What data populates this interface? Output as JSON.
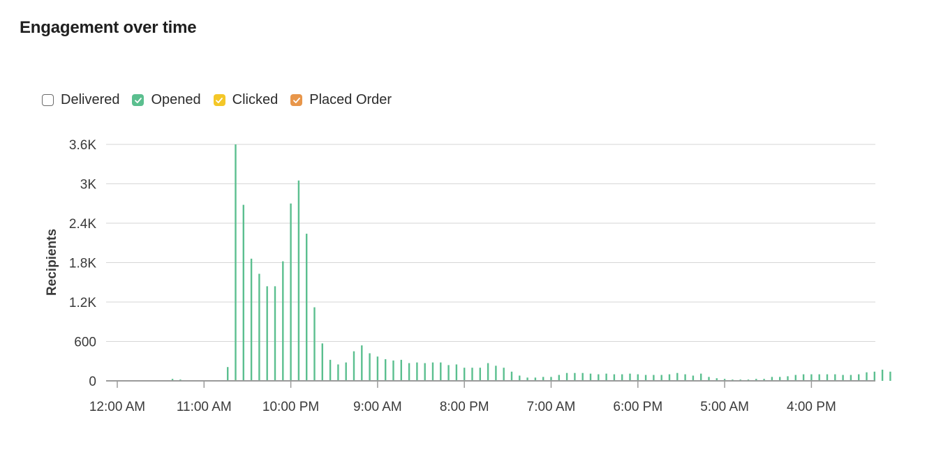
{
  "title": "Engagement over time",
  "legend": [
    {
      "label": "Delivered",
      "checked": false,
      "color": "#ffffff",
      "icon": "checkbox-unchecked-icon"
    },
    {
      "label": "Opened",
      "checked": true,
      "color": "#5bbf8f",
      "icon": "checkbox-checked-icon"
    },
    {
      "label": "Clicked",
      "checked": true,
      "color": "#f4c728",
      "icon": "checkbox-checked-icon"
    },
    {
      "label": "Placed Order",
      "checked": true,
      "color": "#e8964a",
      "icon": "checkbox-checked-icon"
    }
  ],
  "chart_data": {
    "type": "bar",
    "ylabel": "Recipients",
    "xlabel": "",
    "ylim": [
      0,
      3600
    ],
    "y_ticks": [
      "0",
      "600",
      "1.2K",
      "1.8K",
      "2.4K",
      "3K",
      "3.6K"
    ],
    "y_tick_values": [
      0,
      600,
      1200,
      1800,
      2400,
      3000,
      3600
    ],
    "x_tick_labels": [
      "12:00 AM",
      "11:00 AM",
      "10:00 PM",
      "9:00 AM",
      "8:00 PM",
      "7:00 AM",
      "6:00 PM",
      "5:00 AM",
      "4:00 PM"
    ],
    "x_tick_index": [
      0,
      11,
      22,
      33,
      44,
      55,
      66,
      77,
      88
    ],
    "grid": true,
    "legend_position": "top-left",
    "series": [
      {
        "name": "Opened",
        "color": "#5bbf8f",
        "values": [
          0,
          0,
          0,
          0,
          0,
          0,
          0,
          30,
          20,
          10,
          5,
          5,
          10,
          5,
          210,
          3600,
          2680,
          1860,
          1630,
          1440,
          1440,
          1820,
          2700,
          3050,
          2240,
          1120,
          570,
          320,
          250,
          280,
          450,
          540,
          420,
          370,
          330,
          310,
          320,
          270,
          280,
          270,
          280,
          280,
          240,
          250,
          200,
          200,
          200,
          270,
          230,
          200,
          140,
          80,
          50,
          50,
          60,
          60,
          90,
          120,
          120,
          120,
          110,
          100,
          110,
          100,
          100,
          110,
          100,
          90,
          90,
          90,
          100,
          120,
          100,
          80,
          110,
          60,
          40,
          30,
          20,
          20,
          20,
          30,
          30,
          60,
          60,
          70,
          90,
          100,
          100,
          100,
          100,
          100,
          90,
          90,
          100,
          130,
          140,
          170,
          140
        ],
        "note_first_index": 0
      },
      {
        "name": "Clicked",
        "color": "#f4c728",
        "values": [
          0,
          0,
          0,
          0,
          0,
          0,
          0,
          0,
          0,
          0,
          0,
          0,
          0,
          0,
          0,
          12,
          8,
          5,
          4,
          4,
          4,
          5,
          8,
          9,
          6,
          3,
          2,
          1,
          1,
          1,
          1,
          2,
          1,
          1,
          1,
          1,
          1,
          1,
          1,
          1,
          1,
          1,
          1,
          1,
          1,
          1,
          1,
          1,
          1,
          1,
          0,
          0,
          0,
          0,
          0,
          0,
          0,
          0,
          0,
          0,
          0,
          0,
          0,
          0,
          0,
          0,
          0,
          0,
          0,
          0,
          0,
          0,
          0,
          0,
          0,
          0,
          0,
          0,
          0,
          0,
          0,
          0,
          0,
          0,
          0,
          0,
          0,
          0,
          0,
          0,
          0,
          0,
          0,
          0,
          0,
          0,
          0,
          0,
          0
        ]
      },
      {
        "name": "Placed Order",
        "color": "#e8964a",
        "values": [
          0,
          0,
          0,
          0,
          0,
          0,
          0,
          0,
          0,
          0,
          0,
          0,
          0,
          0,
          0,
          0,
          0,
          0,
          0,
          0,
          0,
          0,
          0,
          0,
          0,
          0,
          0,
          0,
          0,
          0,
          0,
          0,
          0,
          0,
          0,
          0,
          0,
          0,
          0,
          0,
          0,
          0,
          0,
          0,
          0,
          0,
          0,
          0,
          0,
          0,
          0,
          0,
          0,
          0,
          0,
          0,
          0,
          0,
          0,
          0,
          0,
          0,
          0,
          0,
          0,
          0,
          0,
          0,
          0,
          0,
          0,
          0,
          0,
          0,
          0,
          0,
          0,
          0,
          0,
          0,
          0,
          0,
          0,
          0,
          0,
          0,
          0,
          0,
          0,
          0,
          0,
          0,
          0,
          0,
          0,
          0,
          0,
          0,
          0
        ]
      }
    ]
  }
}
